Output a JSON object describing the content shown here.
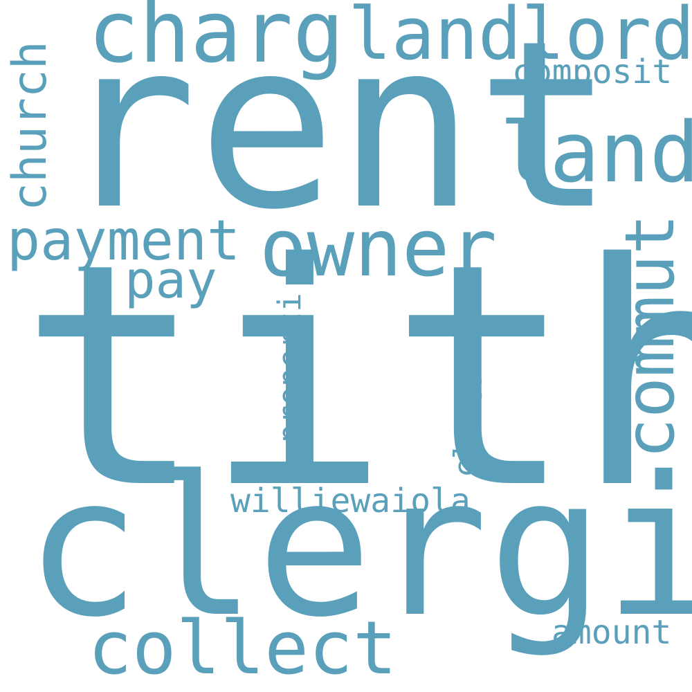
{
  "wordcloud": {
    "color": "#5aa0bb",
    "background": "#ffffff",
    "words": {
      "tith": "tith",
      "rent": "rent",
      "clergi": "clergi",
      "charg": "charg",
      "landlord": "landlord",
      "land": "land",
      "owner": "owner",
      "commut": "commut",
      "church": "church",
      "payment": "payment",
      "pay": "pay",
      "composit": "composit",
      "collect": "collect",
      "properti": "properti",
      "clergyman": "clergyman",
      "williewaiola": "williewaiola",
      "amount": "amount"
    }
  }
}
